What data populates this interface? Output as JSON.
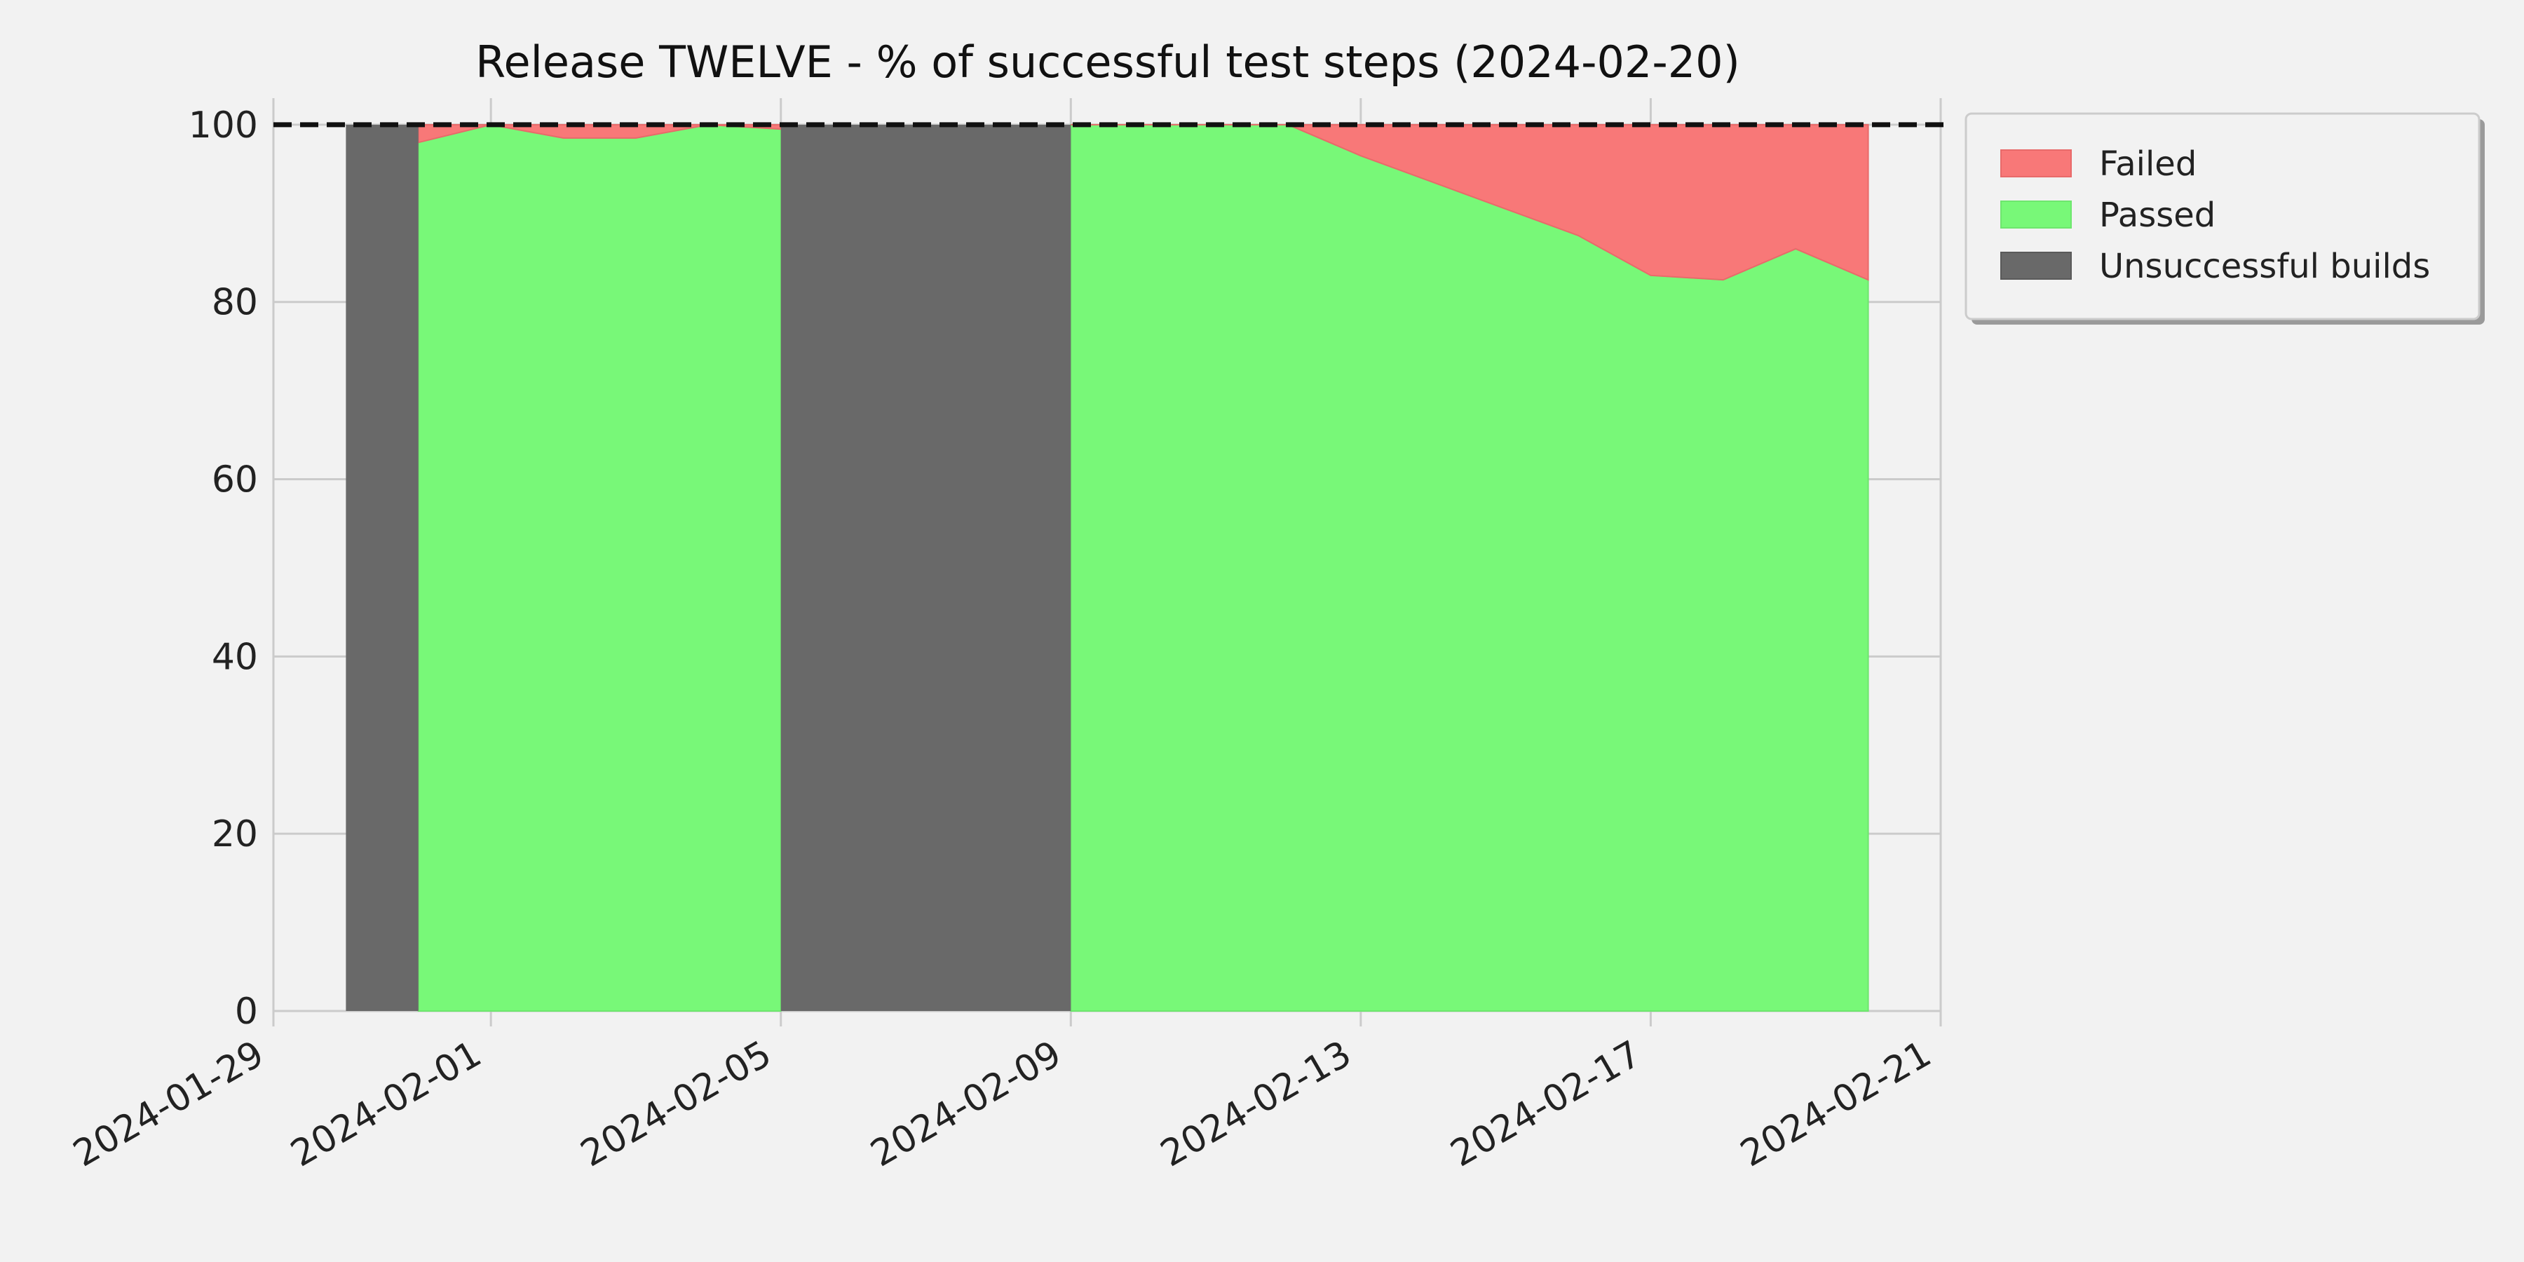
{
  "chart_data": {
    "type": "area",
    "title": "Release TWELVE - % of successful test steps (2024-02-20)",
    "xlabel": "",
    "ylabel": "",
    "x_axis": {
      "type": "date",
      "range": [
        "2024-01-29",
        "2024-02-21"
      ],
      "ticks": [
        "2024-01-29",
        "2024-02-01",
        "2024-02-05",
        "2024-02-09",
        "2024-02-13",
        "2024-02-17",
        "2024-02-21"
      ]
    },
    "y_axis": {
      "range": [
        0,
        103
      ],
      "ticks": [
        0,
        20,
        40,
        60,
        80,
        100
      ]
    },
    "grid": true,
    "reference_line": {
      "y": 100,
      "style": "dashed",
      "color": "#111111"
    },
    "legend": {
      "placement": "outside-top-right",
      "entries": [
        {
          "name": "Failed",
          "color": "#f87878"
        },
        {
          "name": "Passed",
          "color": "#78f878"
        },
        {
          "name": "Unsuccessful builds",
          "color": "#696969"
        }
      ]
    },
    "series": [
      {
        "name": "Passed",
        "color": "#78f878",
        "points": [
          {
            "x": "2024-01-31",
            "y": 98
          },
          {
            "x": "2024-02-01",
            "y": 100
          },
          {
            "x": "2024-02-02",
            "y": 98.5
          },
          {
            "x": "2024-02-03",
            "y": 98.5
          },
          {
            "x": "2024-02-04",
            "y": 100
          },
          {
            "x": "2024-02-05",
            "y": 99.5
          },
          {
            "x": "2024-02-09",
            "y": 100
          },
          {
            "x": "2024-02-10",
            "y": 100
          },
          {
            "x": "2024-02-11",
            "y": 100
          },
          {
            "x": "2024-02-12",
            "y": 100
          },
          {
            "x": "2024-02-13",
            "y": 96.5
          },
          {
            "x": "2024-02-14",
            "y": 93.5
          },
          {
            "x": "2024-02-15",
            "y": 90.5
          },
          {
            "x": "2024-02-16",
            "y": 87.5
          },
          {
            "x": "2024-02-17",
            "y": 83
          },
          {
            "x": "2024-02-18",
            "y": 82.5
          },
          {
            "x": "2024-02-19",
            "y": 86
          },
          {
            "x": "2024-02-20",
            "y": 82.5
          }
        ]
      },
      {
        "name": "Failed",
        "color": "#f87878",
        "points": [
          {
            "x": "2024-01-31",
            "y": 2
          },
          {
            "x": "2024-02-01",
            "y": 0
          },
          {
            "x": "2024-02-02",
            "y": 1.5
          },
          {
            "x": "2024-02-03",
            "y": 1.5
          },
          {
            "x": "2024-02-04",
            "y": 0
          },
          {
            "x": "2024-02-05",
            "y": 0.5
          },
          {
            "x": "2024-02-09",
            "y": 0
          },
          {
            "x": "2024-02-10",
            "y": 0
          },
          {
            "x": "2024-02-11",
            "y": 0
          },
          {
            "x": "2024-02-12",
            "y": 0
          },
          {
            "x": "2024-02-13",
            "y": 3.5
          },
          {
            "x": "2024-02-14",
            "y": 6.5
          },
          {
            "x": "2024-02-15",
            "y": 9.5
          },
          {
            "x": "2024-02-16",
            "y": 12.5
          },
          {
            "x": "2024-02-17",
            "y": 17
          },
          {
            "x": "2024-02-18",
            "y": 17.5
          },
          {
            "x": "2024-02-19",
            "y": 14
          },
          {
            "x": "2024-02-20",
            "y": 17.5
          }
        ]
      },
      {
        "name": "Unsuccessful builds",
        "color": "#696969",
        "spans": [
          {
            "from": "2024-01-30",
            "to": "2024-01-31",
            "y": 100
          },
          {
            "from": "2024-02-05",
            "to": "2024-02-09",
            "y": 100
          }
        ]
      }
    ]
  }
}
